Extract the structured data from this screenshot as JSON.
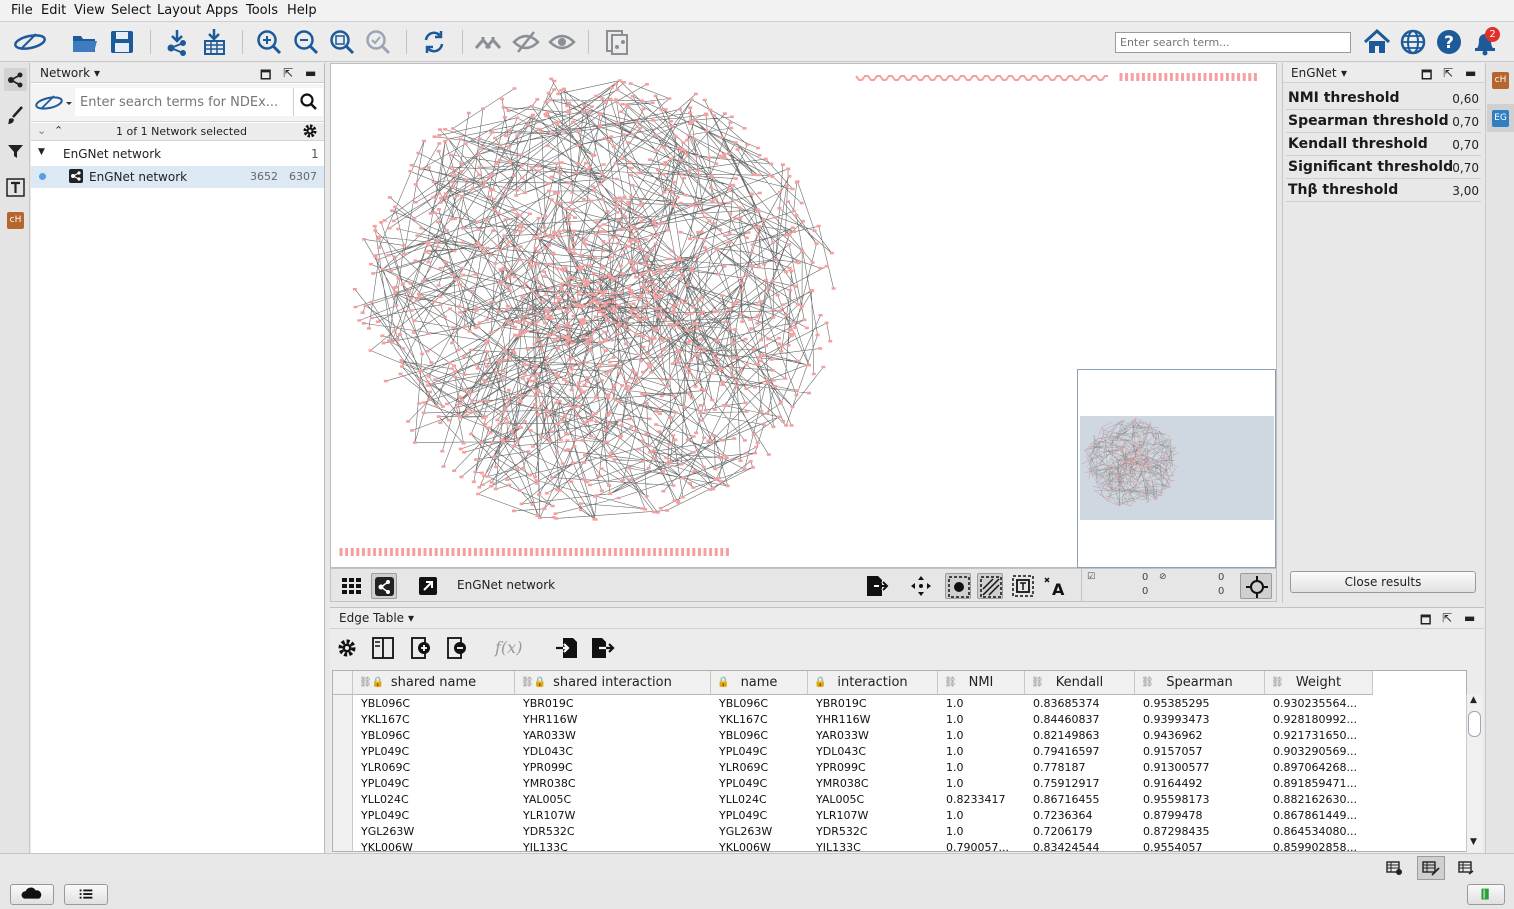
{
  "menu": [
    "File",
    "Edit",
    "View",
    "Select",
    "Layout",
    "Apps",
    "Tools",
    "Help"
  ],
  "toolbar": {
    "search_placeholder": "Enter search term...",
    "notification_count": "2"
  },
  "network_panel": {
    "title": "Network",
    "ndex_placeholder": "Enter search terms for NDEx...",
    "selection_status": "1 of 1 Network selected",
    "collection": {
      "name": "EnGNet network",
      "count": "1"
    },
    "network": {
      "name": "EnGNet network",
      "nodes": "3652",
      "edges": "6307"
    }
  },
  "view": {
    "network_name": "EnGNet network",
    "selected_nodes": "0",
    "selected_edges": "0",
    "hidden_nodes": "0",
    "hidden_edges": "0"
  },
  "engnet_panel": {
    "title": "EnGNet",
    "thresholds": [
      {
        "label": "NMI threshold",
        "value": "0,60"
      },
      {
        "label": "Spearman threshold",
        "value": "0,70"
      },
      {
        "label": "Kendall threshold",
        "value": "0,70"
      },
      {
        "label": "Significant threshold",
        "value": "0,70"
      },
      {
        "label": "Thβ threshold",
        "value": "3,00"
      }
    ],
    "close_button": "Close results"
  },
  "right_strip": {
    "tab1": "cH",
    "tab2": "EG"
  },
  "left_strip": {
    "app_tab": "cH"
  },
  "edge_table": {
    "title": "Edge Table",
    "function_label": "f(x)",
    "columns": [
      "shared name",
      "shared interaction",
      "name",
      "interaction",
      "NMI",
      "Kendall",
      "Spearman",
      "Weight"
    ],
    "rows": [
      [
        "YBL096C",
        "YBR019C",
        "YBL096C",
        "YBR019C",
        "1.0",
        "0.83685374",
        "0.95385295",
        "0.930235564..."
      ],
      [
        "YKL167C",
        "YHR116W",
        "YKL167C",
        "YHR116W",
        "1.0",
        "0.84460837",
        "0.93993473",
        "0.928180992..."
      ],
      [
        "YBL096C",
        "YAR033W",
        "YBL096C",
        "YAR033W",
        "1.0",
        "0.82149863",
        "0.9436962",
        "0.921731650..."
      ],
      [
        "YPL049C",
        "YDL043C",
        "YPL049C",
        "YDL043C",
        "1.0",
        "0.79416597",
        "0.9157057",
        "0.903290569..."
      ],
      [
        "YLR069C",
        "YPR099C",
        "YLR069C",
        "YPR099C",
        "1.0",
        "0.778187",
        "0.91300577",
        "0.897064268..."
      ],
      [
        "YPL049C",
        "YMR038C",
        "YPL049C",
        "YMR038C",
        "1.0",
        "0.75912917",
        "0.9164492",
        "0.891859471..."
      ],
      [
        "YLL024C",
        "YAL005C",
        "YLL024C",
        "YAL005C",
        "0.8233417",
        "0.86716455",
        "0.95598173",
        "0.882162630..."
      ],
      [
        "YPL049C",
        "YLR107W",
        "YPL049C",
        "YLR107W",
        "1.0",
        "0.7236364",
        "0.8799478",
        "0.867861449..."
      ],
      [
        "YGL263W",
        "YDR532C",
        "YGL263W",
        "YDR532C",
        "1.0",
        "0.7206179",
        "0.87298435",
        "0.864534080..."
      ],
      [
        "YKL006W",
        "YIL133C",
        "YKL006W",
        "YIL133C",
        "0.790057...",
        "0.83424544",
        "0.9554057",
        "0.859902858..."
      ]
    ]
  },
  "colors": {
    "node": "#f4a0a0",
    "edge": "#6b6b6b",
    "accent_blue": "#1c5a9a",
    "selected_row": "#dde8f5"
  }
}
